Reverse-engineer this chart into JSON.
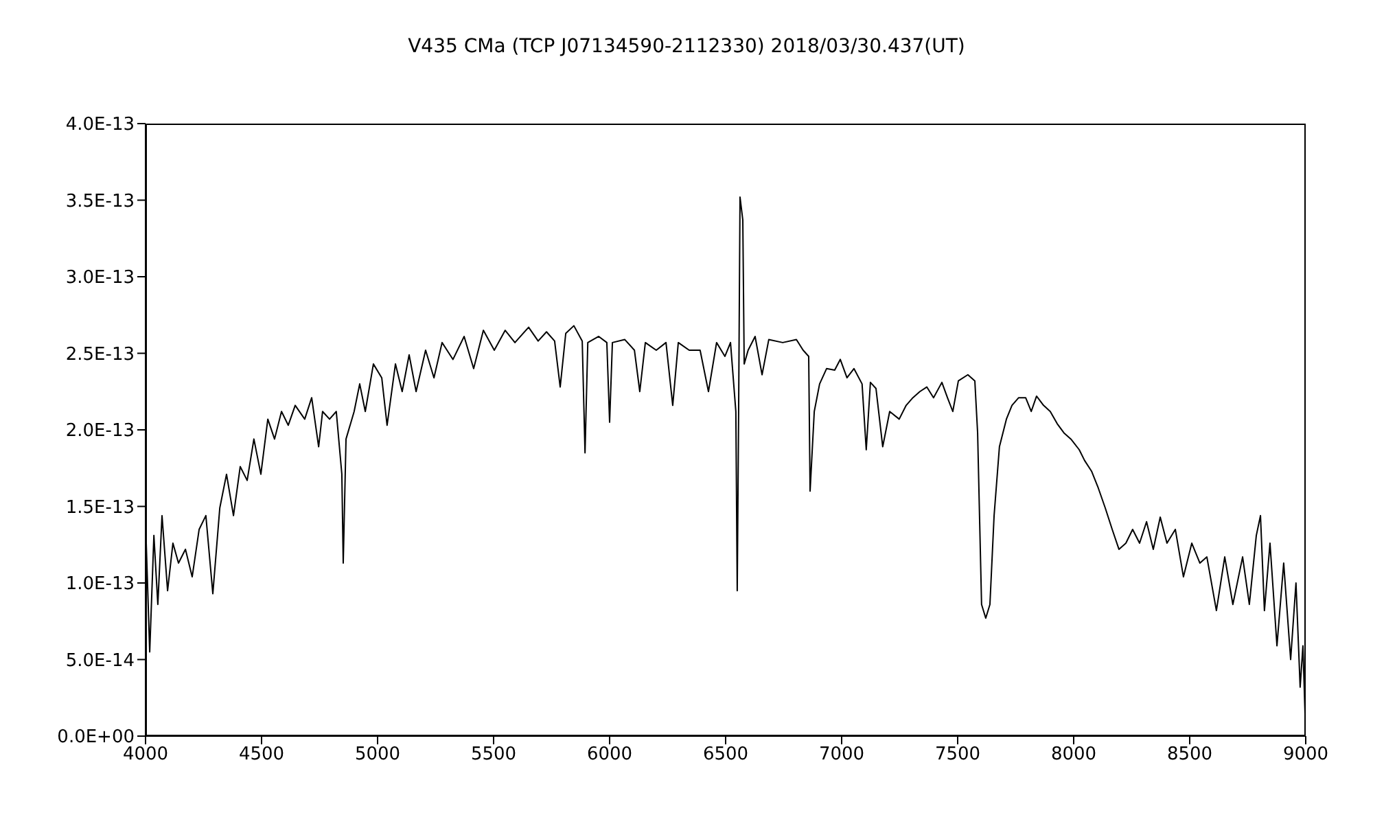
{
  "chart_data": {
    "type": "line",
    "title": "V435 CMa (TCP J07134590-2112330)     2018/03/30.437(UT)",
    "x": [
      4000,
      4018,
      4036,
      4053,
      4071,
      4095,
      4118,
      4142,
      4172,
      4201,
      4231,
      4260,
      4290,
      4320,
      4349,
      4379,
      4408,
      4438,
      4467,
      4497,
      4527,
      4556,
      4586,
      4615,
      4645,
      4686,
      4716,
      4746,
      4763,
      4793,
      4822,
      4846,
      4852,
      4864,
      4899,
      4923,
      4947,
      4982,
      5018,
      5041,
      5077,
      5106,
      5136,
      5166,
      5207,
      5243,
      5278,
      5325,
      5373,
      5414,
      5456,
      5503,
      5550,
      5592,
      5651,
      5692,
      5728,
      5763,
      5787,
      5811,
      5846,
      5882,
      5894,
      5906,
      5953,
      5988,
      6000,
      6012,
      6065,
      6107,
      6130,
      6154,
      6201,
      6243,
      6272,
      6296,
      6343,
      6390,
      6426,
      6461,
      6497,
      6521,
      6544,
      6550,
      6556,
      6562,
      6574,
      6580,
      6597,
      6627,
      6657,
      6686,
      6746,
      6805,
      6834,
      6858,
      6864,
      6882,
      6905,
      6935,
      6970,
      6994,
      7023,
      7053,
      7088,
      7106,
      7124,
      7148,
      7177,
      7207,
      7248,
      7278,
      7307,
      7337,
      7367,
      7396,
      7432,
      7456,
      7479,
      7503,
      7544,
      7574,
      7586,
      7603,
      7621,
      7639,
      7657,
      7680,
      7710,
      7734,
      7763,
      7793,
      7817,
      7840,
      7870,
      7899,
      7929,
      7958,
      7988,
      8024,
      8047,
      8077,
      8106,
      8136,
      8166,
      8195,
      8225,
      8254,
      8284,
      8314,
      8343,
      8373,
      8402,
      8438,
      8473,
      8509,
      8544,
      8574,
      8615,
      8651,
      8686,
      8728,
      8757,
      8787,
      8805,
      8822,
      8846,
      8876,
      8905,
      8935,
      8958,
      8976,
      8988,
      9000
    ],
    "series": [
      {
        "color": "#000000",
        "values": [
          1.4e-13,
          5.5e-14,
          1.31e-13,
          8.6e-14,
          1.44e-13,
          9.5e-14,
          1.26e-13,
          1.13e-13,
          1.22e-13,
          1.04e-13,
          1.35e-13,
          1.44e-13,
          9.3e-14,
          1.49e-13,
          1.71e-13,
          1.44e-13,
          1.76e-13,
          1.67e-13,
          1.94e-13,
          1.71e-13,
          2.07e-13,
          1.94e-13,
          2.12e-13,
          2.03e-13,
          2.16e-13,
          2.07e-13,
          2.21e-13,
          1.89e-13,
          2.12e-13,
          2.07e-13,
          2.12e-13,
          1.71e-13,
          1.13e-13,
          1.94e-13,
          2.12e-13,
          2.3e-13,
          2.12e-13,
          2.43e-13,
          2.34e-13,
          2.03e-13,
          2.43e-13,
          2.25e-13,
          2.49e-13,
          2.25e-13,
          2.52e-13,
          2.34e-13,
          2.57e-13,
          2.46e-13,
          2.61e-13,
          2.4e-13,
          2.65e-13,
          2.52e-13,
          2.65e-13,
          2.57e-13,
          2.67e-13,
          2.58e-13,
          2.64e-13,
          2.58e-13,
          2.28e-13,
          2.63e-13,
          2.68e-13,
          2.58e-13,
          1.85e-13,
          2.57e-13,
          2.61e-13,
          2.57e-13,
          2.05e-13,
          2.57e-13,
          2.59e-13,
          2.52e-13,
          2.25e-13,
          2.57e-13,
          2.52e-13,
          2.57e-13,
          2.16e-13,
          2.57e-13,
          2.52e-13,
          2.52e-13,
          2.25e-13,
          2.57e-13,
          2.48e-13,
          2.57e-13,
          2.12e-13,
          9.5e-14,
          2.12e-13,
          3.52e-13,
          3.37e-13,
          2.43e-13,
          2.52e-13,
          2.61e-13,
          2.36e-13,
          2.59e-13,
          2.57e-13,
          2.59e-13,
          2.52e-13,
          2.48e-13,
          1.6e-13,
          2.12e-13,
          2.3e-13,
          2.4e-13,
          2.39e-13,
          2.46e-13,
          2.34e-13,
          2.4e-13,
          2.3e-13,
          1.87e-13,
          2.31e-13,
          2.27e-13,
          1.89e-13,
          2.12e-13,
          2.07e-13,
          2.16e-13,
          2.21e-13,
          2.25e-13,
          2.28e-13,
          2.21e-13,
          2.31e-13,
          2.21e-13,
          2.12e-13,
          2.32e-13,
          2.36e-13,
          2.32e-13,
          1.98e-13,
          8.6e-14,
          7.7e-14,
          8.6e-14,
          1.44e-13,
          1.89e-13,
          2.07e-13,
          2.16e-13,
          2.21e-13,
          2.21e-13,
          2.12e-13,
          2.22e-13,
          2.16e-13,
          2.12e-13,
          2.04e-13,
          1.98e-13,
          1.94e-13,
          1.87e-13,
          1.8e-13,
          1.73e-13,
          1.62e-13,
          1.49e-13,
          1.35e-13,
          1.22e-13,
          1.26e-13,
          1.35e-13,
          1.26e-13,
          1.4e-13,
          1.22e-13,
          1.43e-13,
          1.26e-13,
          1.35e-13,
          1.04e-13,
          1.26e-13,
          1.13e-13,
          1.17e-13,
          8.2e-14,
          1.17e-13,
          8.6e-14,
          1.17e-13,
          8.6e-14,
          1.31e-13,
          1.44e-13,
          8.2e-14,
          1.26e-13,
          5.9e-14,
          1.13e-13,
          5e-14,
          1e-13,
          3.2e-14,
          5.9e-14,
          0
        ]
      }
    ],
    "xlim": [
      4000,
      9000
    ],
    "xticks": [
      4000,
      4500,
      5000,
      5500,
      6000,
      6500,
      7000,
      7500,
      8000,
      8500,
      9000
    ],
    "ylim": [
      0,
      4e-13
    ],
    "yticks": [
      {
        "value": 0,
        "label": "0.0E+00"
      },
      {
        "value": 5e-14,
        "label": "5.0E-14"
      },
      {
        "value": 1e-13,
        "label": "1.0E-13"
      },
      {
        "value": 1.5e-13,
        "label": "1.5E-13"
      },
      {
        "value": 2e-13,
        "label": "2.0E-13"
      },
      {
        "value": 2.5e-13,
        "label": "2.5E-13"
      },
      {
        "value": 3e-13,
        "label": "3.0E-13"
      },
      {
        "value": 3.5e-13,
        "label": "3.5E-13"
      },
      {
        "value": 4e-13,
        "label": "4.0E-13"
      }
    ],
    "grid": false,
    "legend": false,
    "marker": "none",
    "line_style": "solid"
  }
}
